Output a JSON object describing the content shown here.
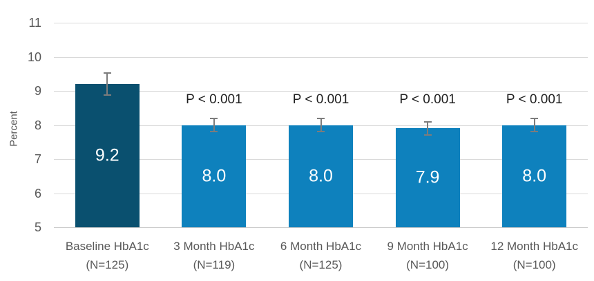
{
  "chart_data": {
    "type": "bar",
    "title": "",
    "ylabel": "Percent",
    "xlabel": "",
    "ylim": [
      5,
      11
    ],
    "yticks": [
      5,
      6,
      7,
      8,
      9,
      10,
      11
    ],
    "grid": true,
    "legend": false,
    "categories": [
      "Baseline HbA1c (N=125)",
      "3 Month HbA1c (N=119)",
      "6 Month HbA1c (N=125)",
      "9 Month HbA1c (N=100)",
      "12 Month HbA1c (N=100)"
    ],
    "bars": [
      {
        "category_line1": "Baseline HbA1c",
        "category_line2": "(N=125)",
        "value": 9.2,
        "value_label": "9.2",
        "error": 0.35,
        "color": "#0a506f",
        "p_label": ""
      },
      {
        "category_line1": "3 Month HbA1c",
        "category_line2": "(N=119)",
        "value": 8.0,
        "value_label": "8.0",
        "error": 0.22,
        "color": "#0e81bd",
        "p_label": "P < 0.001"
      },
      {
        "category_line1": "6 Month HbA1c",
        "category_line2": "(N=125)",
        "value": 8.0,
        "value_label": "8.0",
        "error": 0.22,
        "color": "#0e81bd",
        "p_label": "P < 0.001"
      },
      {
        "category_line1": "9 Month HbA1c",
        "category_line2": "(N=100)",
        "value": 7.9,
        "value_label": "7.9",
        "error": 0.22,
        "color": "#0e81bd",
        "p_label": "P < 0.001"
      },
      {
        "category_line1": "12 Month HbA1c",
        "category_line2": "(N=100)",
        "value": 8.0,
        "value_label": "8.0",
        "error": 0.22,
        "color": "#0e81bd",
        "p_label": "P < 0.001"
      }
    ],
    "colors": {
      "baseline_bar": "#0a506f",
      "followup_bar": "#0e81bd",
      "gridline": "#d9d9d9",
      "axis_line": "#c9c9c9",
      "tick_text": "#595959",
      "category_text": "#595959",
      "p_text": "#1f1f1f",
      "error_bar": "#7c7c7c",
      "value_text": "#ffffff"
    }
  }
}
